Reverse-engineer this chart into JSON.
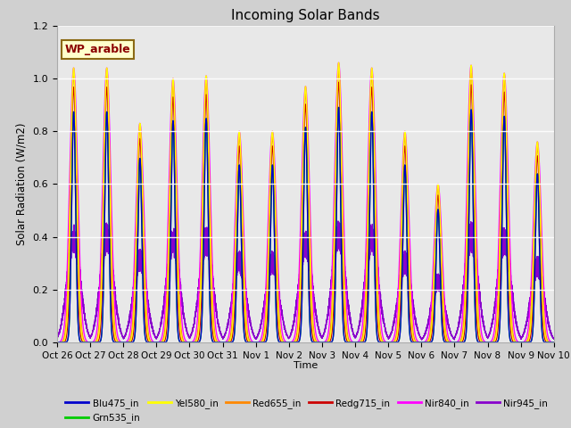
{
  "title": "Incoming Solar Bands",
  "xlabel": "Time",
  "ylabel": "Solar Radiation (W/m2)",
  "legend_label": "WP_arable",
  "legend_items": [
    {
      "label": "Blu475_in",
      "color": "#0000cc"
    },
    {
      "label": "Grn535_in",
      "color": "#00cc00"
    },
    {
      "label": "Yel580_in",
      "color": "#ffff00"
    },
    {
      "label": "Red655_in",
      "color": "#ff8800"
    },
    {
      "label": "Redg715_in",
      "color": "#cc0000"
    },
    {
      "label": "Nir840_in",
      "color": "#ff00ff"
    },
    {
      "label": "Nir945_in",
      "color": "#8800cc"
    }
  ],
  "ylim": [
    0,
    1.2
  ],
  "figsize": [
    6.4,
    4.8
  ],
  "dpi": 100,
  "num_days": 15,
  "points_per_day": 480,
  "day_peaks": [
    1.04,
    1.04,
    0.83,
    1.0,
    1.01,
    0.8,
    0.8,
    0.97,
    1.06,
    1.04,
    0.8,
    0.6,
    1.05,
    1.02,
    0.76
  ],
  "band_rel_peaks": {
    "Blu475_in": 0.84,
    "Grn535_in": 0.84,
    "Yel580_in": 1.0,
    "Red655_in": 0.97,
    "Redg715_in": 0.93,
    "Nir840_in": 1.0,
    "Nir945_in": 0.38
  },
  "band_widths": {
    "Blu475_in": 0.06,
    "Grn535_in": 0.06,
    "Yel580_in": 0.09,
    "Red655_in": 0.1,
    "Redg715_in": 0.08,
    "Nir840_in": 0.12,
    "Nir945_in": 0.2
  }
}
